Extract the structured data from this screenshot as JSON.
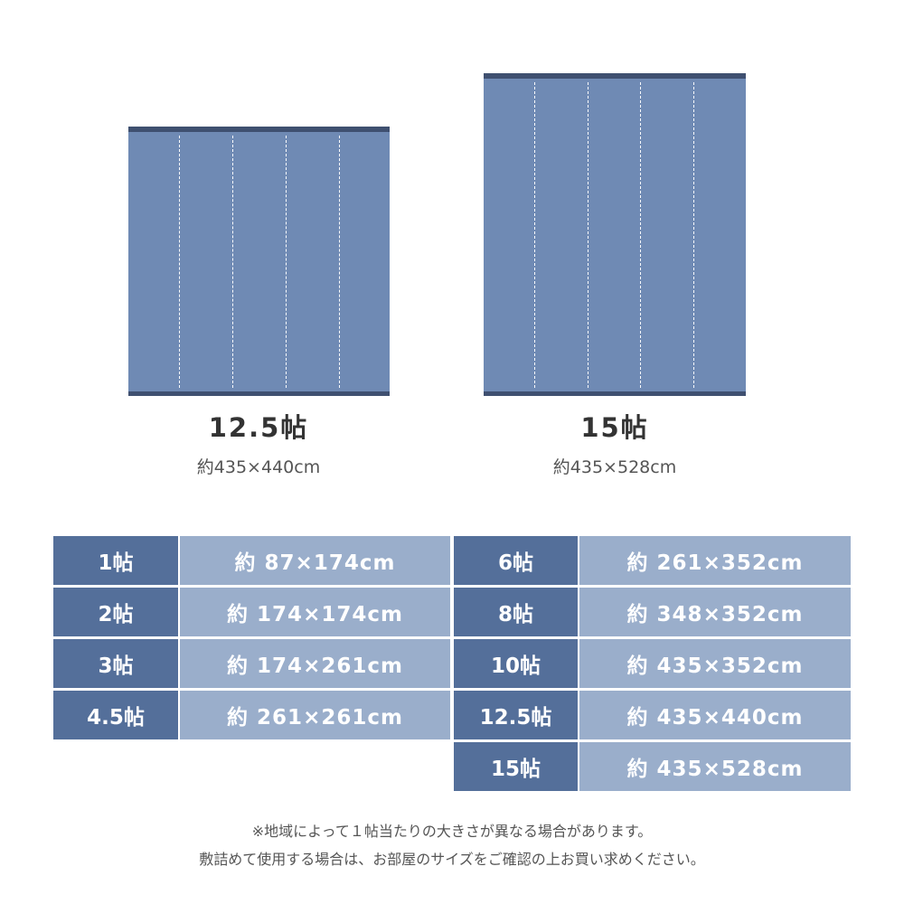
{
  "colors": {
    "rug": "#6f8ab4",
    "rug_border": "#3f5070",
    "size_cell": "#546f9a",
    "dim_cell": "#9aaecb"
  },
  "rugs": [
    {
      "title": "12.5帖",
      "dimensions": "約435×440cm"
    },
    {
      "title": "15帖",
      "dimensions": "約435×528cm"
    }
  ],
  "table_left": [
    {
      "size": "1帖",
      "dimensions": "約 87×174cm"
    },
    {
      "size": "2帖",
      "dimensions": "約 174×174cm"
    },
    {
      "size": "3帖",
      "dimensions": "約 174×261cm"
    },
    {
      "size": "4.5帖",
      "dimensions": "約 261×261cm"
    }
  ],
  "table_right": [
    {
      "size": "6帖",
      "dimensions": "約 261×352cm"
    },
    {
      "size": "8帖",
      "dimensions": "約 348×352cm"
    },
    {
      "size": "10帖",
      "dimensions": "約 435×352cm"
    },
    {
      "size": "12.5帖",
      "dimensions": "約 435×440cm"
    },
    {
      "size": "15帖",
      "dimensions": "約 435×528cm"
    }
  ],
  "notes": [
    "※地域によって１帖当たりの大きさが異なる場合があります。",
    "敷詰めて使用する場合は、お部屋のサイズをご確認の上お買い求めください。"
  ]
}
